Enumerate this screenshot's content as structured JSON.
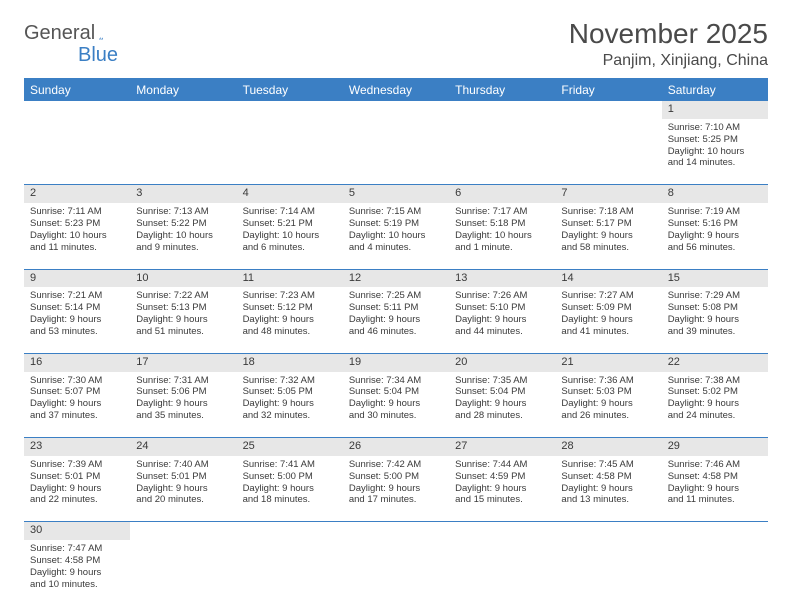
{
  "logo": {
    "general": "General",
    "blue": "Blue"
  },
  "title": "November 2025",
  "location": "Panjim, Xinjiang, China",
  "colors": {
    "header_bg": "#3b7fc4",
    "header_fg": "#ffffff",
    "daynum_bg": "#e7e7e7",
    "border": "#3b7fc4",
    "text": "#3a3a3a"
  },
  "weekdays": [
    "Sunday",
    "Monday",
    "Tuesday",
    "Wednesday",
    "Thursday",
    "Friday",
    "Saturday"
  ],
  "weeks": [
    [
      null,
      null,
      null,
      null,
      null,
      null,
      {
        "n": "1",
        "sr": "Sunrise: 7:10 AM",
        "ss": "Sunset: 5:25 PM",
        "d1": "Daylight: 10 hours",
        "d2": "and 14 minutes."
      }
    ],
    [
      {
        "n": "2",
        "sr": "Sunrise: 7:11 AM",
        "ss": "Sunset: 5:23 PM",
        "d1": "Daylight: 10 hours",
        "d2": "and 11 minutes."
      },
      {
        "n": "3",
        "sr": "Sunrise: 7:13 AM",
        "ss": "Sunset: 5:22 PM",
        "d1": "Daylight: 10 hours",
        "d2": "and 9 minutes."
      },
      {
        "n": "4",
        "sr": "Sunrise: 7:14 AM",
        "ss": "Sunset: 5:21 PM",
        "d1": "Daylight: 10 hours",
        "d2": "and 6 minutes."
      },
      {
        "n": "5",
        "sr": "Sunrise: 7:15 AM",
        "ss": "Sunset: 5:19 PM",
        "d1": "Daylight: 10 hours",
        "d2": "and 4 minutes."
      },
      {
        "n": "6",
        "sr": "Sunrise: 7:17 AM",
        "ss": "Sunset: 5:18 PM",
        "d1": "Daylight: 10 hours",
        "d2": "and 1 minute."
      },
      {
        "n": "7",
        "sr": "Sunrise: 7:18 AM",
        "ss": "Sunset: 5:17 PM",
        "d1": "Daylight: 9 hours",
        "d2": "and 58 minutes."
      },
      {
        "n": "8",
        "sr": "Sunrise: 7:19 AM",
        "ss": "Sunset: 5:16 PM",
        "d1": "Daylight: 9 hours",
        "d2": "and 56 minutes."
      }
    ],
    [
      {
        "n": "9",
        "sr": "Sunrise: 7:21 AM",
        "ss": "Sunset: 5:14 PM",
        "d1": "Daylight: 9 hours",
        "d2": "and 53 minutes."
      },
      {
        "n": "10",
        "sr": "Sunrise: 7:22 AM",
        "ss": "Sunset: 5:13 PM",
        "d1": "Daylight: 9 hours",
        "d2": "and 51 minutes."
      },
      {
        "n": "11",
        "sr": "Sunrise: 7:23 AM",
        "ss": "Sunset: 5:12 PM",
        "d1": "Daylight: 9 hours",
        "d2": "and 48 minutes."
      },
      {
        "n": "12",
        "sr": "Sunrise: 7:25 AM",
        "ss": "Sunset: 5:11 PM",
        "d1": "Daylight: 9 hours",
        "d2": "and 46 minutes."
      },
      {
        "n": "13",
        "sr": "Sunrise: 7:26 AM",
        "ss": "Sunset: 5:10 PM",
        "d1": "Daylight: 9 hours",
        "d2": "and 44 minutes."
      },
      {
        "n": "14",
        "sr": "Sunrise: 7:27 AM",
        "ss": "Sunset: 5:09 PM",
        "d1": "Daylight: 9 hours",
        "d2": "and 41 minutes."
      },
      {
        "n": "15",
        "sr": "Sunrise: 7:29 AM",
        "ss": "Sunset: 5:08 PM",
        "d1": "Daylight: 9 hours",
        "d2": "and 39 minutes."
      }
    ],
    [
      {
        "n": "16",
        "sr": "Sunrise: 7:30 AM",
        "ss": "Sunset: 5:07 PM",
        "d1": "Daylight: 9 hours",
        "d2": "and 37 minutes."
      },
      {
        "n": "17",
        "sr": "Sunrise: 7:31 AM",
        "ss": "Sunset: 5:06 PM",
        "d1": "Daylight: 9 hours",
        "d2": "and 35 minutes."
      },
      {
        "n": "18",
        "sr": "Sunrise: 7:32 AM",
        "ss": "Sunset: 5:05 PM",
        "d1": "Daylight: 9 hours",
        "d2": "and 32 minutes."
      },
      {
        "n": "19",
        "sr": "Sunrise: 7:34 AM",
        "ss": "Sunset: 5:04 PM",
        "d1": "Daylight: 9 hours",
        "d2": "and 30 minutes."
      },
      {
        "n": "20",
        "sr": "Sunrise: 7:35 AM",
        "ss": "Sunset: 5:04 PM",
        "d1": "Daylight: 9 hours",
        "d2": "and 28 minutes."
      },
      {
        "n": "21",
        "sr": "Sunrise: 7:36 AM",
        "ss": "Sunset: 5:03 PM",
        "d1": "Daylight: 9 hours",
        "d2": "and 26 minutes."
      },
      {
        "n": "22",
        "sr": "Sunrise: 7:38 AM",
        "ss": "Sunset: 5:02 PM",
        "d1": "Daylight: 9 hours",
        "d2": "and 24 minutes."
      }
    ],
    [
      {
        "n": "23",
        "sr": "Sunrise: 7:39 AM",
        "ss": "Sunset: 5:01 PM",
        "d1": "Daylight: 9 hours",
        "d2": "and 22 minutes."
      },
      {
        "n": "24",
        "sr": "Sunrise: 7:40 AM",
        "ss": "Sunset: 5:01 PM",
        "d1": "Daylight: 9 hours",
        "d2": "and 20 minutes."
      },
      {
        "n": "25",
        "sr": "Sunrise: 7:41 AM",
        "ss": "Sunset: 5:00 PM",
        "d1": "Daylight: 9 hours",
        "d2": "and 18 minutes."
      },
      {
        "n": "26",
        "sr": "Sunrise: 7:42 AM",
        "ss": "Sunset: 5:00 PM",
        "d1": "Daylight: 9 hours",
        "d2": "and 17 minutes."
      },
      {
        "n": "27",
        "sr": "Sunrise: 7:44 AM",
        "ss": "Sunset: 4:59 PM",
        "d1": "Daylight: 9 hours",
        "d2": "and 15 minutes."
      },
      {
        "n": "28",
        "sr": "Sunrise: 7:45 AM",
        "ss": "Sunset: 4:58 PM",
        "d1": "Daylight: 9 hours",
        "d2": "and 13 minutes."
      },
      {
        "n": "29",
        "sr": "Sunrise: 7:46 AM",
        "ss": "Sunset: 4:58 PM",
        "d1": "Daylight: 9 hours",
        "d2": "and 11 minutes."
      }
    ],
    [
      {
        "n": "30",
        "sr": "Sunrise: 7:47 AM",
        "ss": "Sunset: 4:58 PM",
        "d1": "Daylight: 9 hours",
        "d2": "and 10 minutes."
      },
      null,
      null,
      null,
      null,
      null,
      null
    ]
  ]
}
